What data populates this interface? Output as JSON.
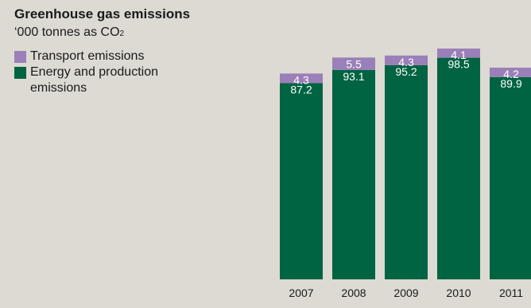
{
  "chart_data": {
    "type": "bar",
    "stacked": true,
    "title": "Greenhouse gas emissions",
    "subtitle_main": "‘000 tonnes as CO",
    "subtitle_sub": "2",
    "categories": [
      "2007",
      "2008",
      "2009",
      "2010",
      "2011"
    ],
    "series": [
      {
        "name": "Energy and production emissions",
        "color": "#006341",
        "values": [
          87.2,
          93.1,
          95.2,
          98.5,
          89.9
        ]
      },
      {
        "name": "Transport emissions",
        "color": "#9b7fb8",
        "values": [
          4.3,
          5.5,
          4.3,
          4.1,
          4.2
        ]
      }
    ],
    "ylim": [
      0,
      102.6
    ],
    "grid": false,
    "legend_position": "top-left"
  },
  "legend": {
    "transport_label": "Transport emissions",
    "energy_label_line1": "Energy and production",
    "energy_label_line2": "emissions"
  }
}
